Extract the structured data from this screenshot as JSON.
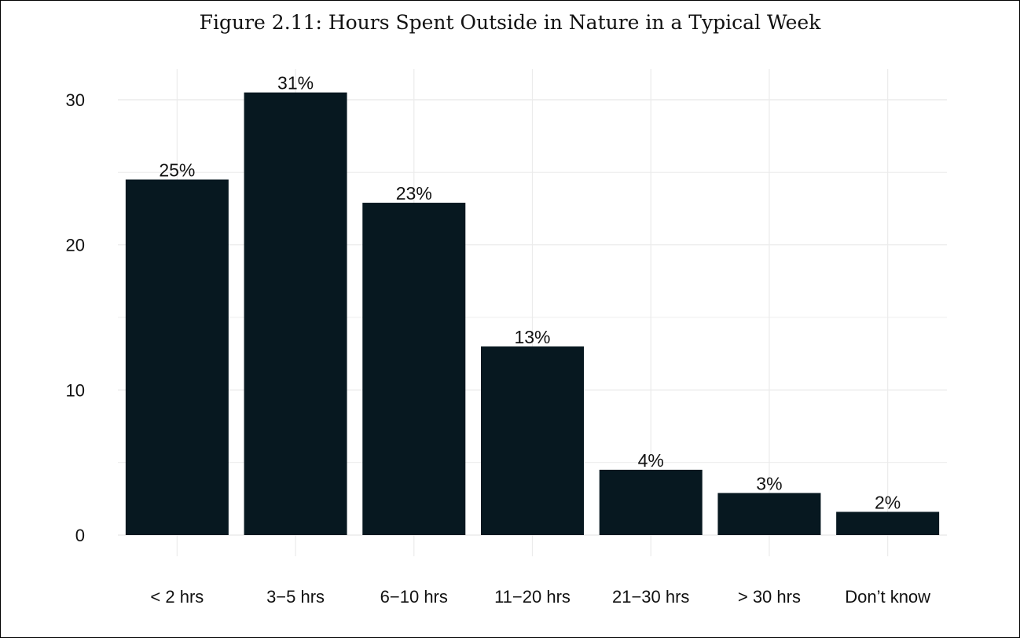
{
  "chart_data": {
    "type": "bar",
    "title": "Figure 2.11: Hours Spent Outside in Nature in a Typical Week",
    "xlabel": "",
    "ylabel": "",
    "categories": [
      "< 2 hrs",
      "3−5 hrs",
      "6−10 hrs",
      "11−20 hrs",
      "21−30 hrs",
      "> 30 hrs",
      "Don’t know"
    ],
    "values": [
      24.5,
      30.5,
      22.9,
      13.0,
      4.5,
      2.9,
      1.6
    ],
    "data_labels": [
      "25%",
      "31%",
      "23%",
      "13%",
      "4%",
      "3%",
      "2%"
    ],
    "y_ticks": [
      0,
      10,
      20,
      30
    ],
    "ylim": [
      0,
      32
    ],
    "grid": true,
    "legend": "none",
    "bar_color": "#071820",
    "grid_color": "#ebebeb"
  }
}
